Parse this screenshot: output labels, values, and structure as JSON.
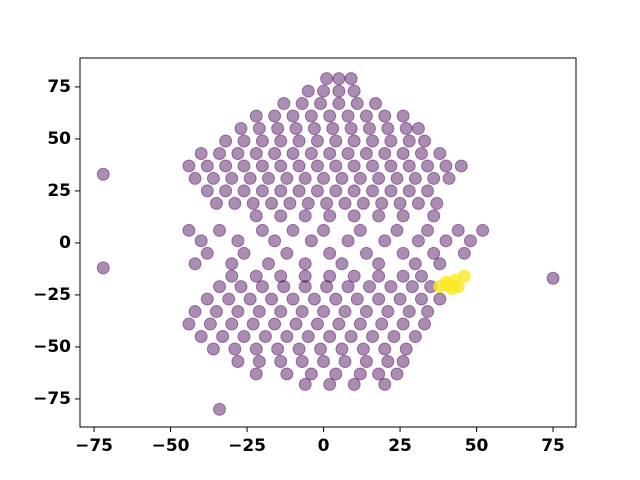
{
  "chart_data": {
    "type": "scatter",
    "xlim": [
      -79.6,
      82.5
    ],
    "ylim": [
      -88.5,
      88.9
    ],
    "xticks": [
      {
        "value": -75,
        "label": "−75"
      },
      {
        "value": -50,
        "label": "−50"
      },
      {
        "value": -25,
        "label": "−25"
      },
      0,
      25,
      50,
      75
    ],
    "yticks": [
      {
        "value": -75,
        "label": "−75"
      },
      {
        "value": -50,
        "label": "−50"
      },
      {
        "value": -25,
        "label": "−25"
      },
      0,
      25,
      50,
      75
    ],
    "series": [
      {
        "color": "#440154",
        "alpha": 0.45,
        "x": [
          1,
          5,
          9,
          -5,
          0,
          5,
          10,
          -13,
          -7,
          -1,
          5,
          11,
          17,
          -22,
          -16,
          -10,
          -4,
          2,
          8,
          14,
          20,
          26,
          -27,
          -21,
          -15,
          -9,
          -3,
          3,
          9,
          15,
          21,
          27,
          31,
          -32,
          -26,
          -20,
          -14,
          -8,
          -2,
          4,
          10,
          16,
          22,
          28,
          33,
          -40,
          -34,
          -28,
          -22,
          -16,
          -10,
          -4,
          2,
          8,
          14,
          20,
          26,
          32,
          38,
          -44,
          -38,
          -32,
          -26,
          -20,
          -14,
          -8,
          -2,
          4,
          10,
          16,
          22,
          28,
          34,
          40,
          45,
          -42,
          -36,
          -30,
          -24,
          -18,
          -12,
          -6,
          0,
          6,
          12,
          18,
          24,
          30,
          36,
          41,
          -38,
          -32,
          -26,
          -20,
          -14,
          -8,
          -2,
          4,
          10,
          16,
          22,
          28,
          34,
          -35,
          -29,
          -23,
          -17,
          -11,
          -5,
          1,
          7,
          13,
          19,
          25,
          31,
          37,
          -22,
          -14,
          -6,
          2,
          10,
          18,
          26,
          36,
          -72,
          -44,
          -34,
          -20,
          -10,
          0,
          12,
          24,
          34,
          44,
          52,
          -40,
          -28,
          -16,
          -4,
          8,
          20,
          31,
          40,
          48,
          -38,
          -26,
          -12,
          2,
          14,
          26,
          36,
          46,
          -42,
          -30,
          -18,
          -6,
          6,
          18,
          30,
          38,
          -72,
          -30,
          -22,
          -14,
          -6,
          2,
          10,
          18,
          26,
          32,
          -34,
          -27,
          -20,
          -13,
          -6,
          1,
          8,
          15,
          22,
          29,
          35,
          -38,
          -31,
          -24,
          -17,
          -10,
          -3,
          4,
          11,
          18,
          25,
          32,
          38,
          -42,
          -35,
          -28,
          -21,
          -14,
          -7,
          0,
          7,
          14,
          21,
          28,
          34,
          -44,
          -37,
          -30,
          -23,
          -16,
          -9,
          -2,
          5,
          12,
          19,
          26,
          33,
          -40,
          -33,
          -26,
          -19,
          -12,
          -5,
          2,
          9,
          16,
          23,
          30,
          -36,
          -29,
          -22,
          -15,
          -8,
          -1,
          6,
          13,
          20,
          27,
          -28,
          -21,
          -14,
          -7,
          0,
          7,
          14,
          21,
          26,
          -22,
          -12,
          -4,
          4,
          12,
          18,
          24,
          -6,
          2,
          10,
          20,
          -34,
          75
        ],
        "values": [
          79,
          79,
          79,
          73,
          73,
          73,
          73,
          67,
          67,
          67,
          67,
          67,
          67,
          61,
          61,
          61,
          61,
          61,
          61,
          61,
          61,
          61,
          55,
          55,
          55,
          55,
          55,
          55,
          55,
          55,
          55,
          55,
          55,
          49,
          49,
          49,
          49,
          49,
          49,
          49,
          49,
          49,
          49,
          49,
          49,
          43,
          43,
          43,
          43,
          43,
          43,
          43,
          43,
          43,
          43,
          43,
          43,
          43,
          43,
          37,
          37,
          37,
          37,
          37,
          37,
          37,
          37,
          37,
          37,
          37,
          37,
          37,
          37,
          37,
          37,
          31,
          31,
          31,
          31,
          31,
          31,
          31,
          31,
          31,
          31,
          31,
          31,
          31,
          31,
          31,
          25,
          25,
          25,
          25,
          25,
          25,
          25,
          25,
          25,
          25,
          25,
          25,
          25,
          19,
          19,
          19,
          19,
          19,
          19,
          19,
          19,
          19,
          19,
          19,
          19,
          19,
          13,
          13,
          13,
          13,
          13,
          13,
          13,
          13,
          33,
          6,
          6,
          6,
          6,
          6,
          6,
          6,
          6,
          6,
          6,
          1,
          1,
          1,
          1,
          1,
          1,
          1,
          1,
          1,
          -5,
          -5,
          -5,
          -5,
          -5,
          -5,
          -5,
          -5,
          -10,
          -10,
          -10,
          -10,
          -10,
          -10,
          -10,
          -10,
          -12,
          -16,
          -16,
          -16,
          -16,
          -16,
          -16,
          -16,
          -16,
          -16,
          -21,
          -21,
          -21,
          -21,
          -21,
          -21,
          -21,
          -21,
          -21,
          -21,
          -21,
          -27,
          -27,
          -27,
          -27,
          -27,
          -27,
          -27,
          -27,
          -27,
          -27,
          -27,
          -27,
          -33,
          -33,
          -33,
          -33,
          -33,
          -33,
          -33,
          -33,
          -33,
          -33,
          -33,
          -33,
          -39,
          -39,
          -39,
          -39,
          -39,
          -39,
          -39,
          -39,
          -39,
          -39,
          -39,
          -39,
          -45,
          -45,
          -45,
          -45,
          -45,
          -45,
          -45,
          -45,
          -45,
          -45,
          -45,
          -51,
          -51,
          -51,
          -51,
          -51,
          -51,
          -51,
          -51,
          -51,
          -51,
          -57,
          -57,
          -57,
          -57,
          -57,
          -57,
          -57,
          -57,
          -57,
          -63,
          -63,
          -63,
          -63,
          -63,
          -63,
          -63,
          -68,
          -68,
          -68,
          -68,
          -80,
          -17
        ]
      },
      {
        "color": "#fde725",
        "alpha": 0.8,
        "x": [
          41,
          43,
          44,
          42,
          40,
          46,
          38
        ],
        "values": [
          -20,
          -18,
          -21,
          -22,
          -19,
          -16,
          -21
        ]
      }
    ]
  }
}
